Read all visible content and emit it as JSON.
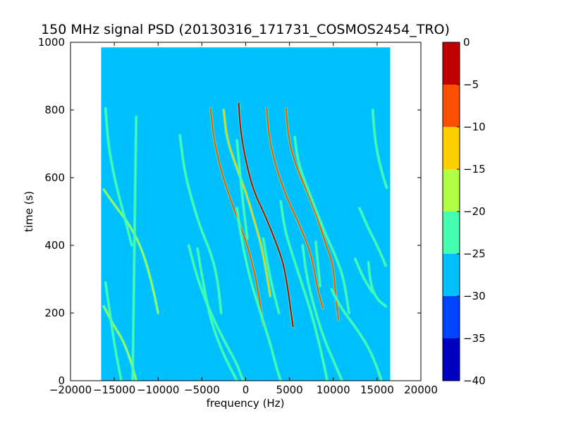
{
  "chart_data": {
    "type": "heatmap",
    "title": "150 MHz signal PSD (20130316_171731_COSMOS2454_TRO)",
    "xlabel": "frequency (Hz)",
    "ylabel": "time (s)",
    "xlim": [
      -20000,
      20000
    ],
    "ylim": [
      0,
      1000
    ],
    "x_ticks": [
      "−20000",
      "−15000",
      "−10000",
      "−5000",
      "0",
      "5000",
      "10000",
      "15000",
      "20000"
    ],
    "x_tick_values": [
      -20000,
      -15000,
      -10000,
      -5000,
      0,
      5000,
      10000,
      15000,
      20000
    ],
    "y_ticks": [
      "0",
      "200",
      "400",
      "600",
      "800",
      "1000"
    ],
    "y_tick_values": [
      0,
      200,
      400,
      600,
      800,
      1000
    ],
    "data_extent": {
      "freq_min": -16500,
      "freq_max": 16500,
      "time_min": 0,
      "time_max": 985
    },
    "background_level": -28,
    "colorbar": {
      "levels": [
        0,
        -5,
        -10,
        -15,
        -20,
        -25,
        -30,
        -35,
        -40
      ],
      "tick_labels": [
        "0",
        "−5",
        "−10",
        "−15",
        "−20",
        "−25",
        "−30",
        "−35",
        "−40"
      ],
      "bands": [
        {
          "from": -40,
          "to": -35,
          "color": "#0000c0"
        },
        {
          "from": -35,
          "to": -30,
          "color": "#0044ff"
        },
        {
          "from": -30,
          "to": -25,
          "color": "#00c0ff"
        },
        {
          "from": -25,
          "to": -20,
          "color": "#44ffb0"
        },
        {
          "from": -20,
          "to": -15,
          "color": "#b0ff44"
        },
        {
          "from": -15,
          "to": -10,
          "color": "#ffd000"
        },
        {
          "from": -10,
          "to": -5,
          "color": "#ff5000"
        },
        {
          "from": -5,
          "to": 0,
          "color": "#c00000"
        }
      ]
    },
    "tracks": [
      {
        "points": [
          [
            -16200,
            565
          ],
          [
            -15000,
            520
          ],
          [
            -13500,
            470
          ],
          [
            -12000,
            400
          ],
          [
            -10800,
            300
          ],
          [
            -10000,
            200
          ]
        ],
        "level": -18
      },
      {
        "points": [
          [
            -16200,
            220
          ],
          [
            -15000,
            160
          ],
          [
            -14000,
            120
          ],
          [
            -13000,
            50
          ],
          [
            -12500,
            0
          ]
        ],
        "level": -18
      },
      {
        "points": [
          [
            -16000,
            805
          ],
          [
            -15700,
            700
          ],
          [
            -15000,
            600
          ],
          [
            -14000,
            500
          ],
          [
            -13000,
            400
          ]
        ],
        "level": -20
      },
      {
        "points": [
          [
            -16000,
            290
          ],
          [
            -15500,
            200
          ],
          [
            -15000,
            110
          ],
          [
            -14500,
            40
          ],
          [
            -14200,
            0
          ]
        ],
        "level": -22
      },
      {
        "points": [
          [
            -12500,
            780
          ],
          [
            -12600,
            600
          ],
          [
            -12700,
            400
          ],
          [
            -12800,
            200
          ],
          [
            -12900,
            0
          ]
        ],
        "level": -24
      },
      {
        "points": [
          [
            -7500,
            725
          ],
          [
            -7000,
            620
          ],
          [
            -6000,
            520
          ],
          [
            -5000,
            440
          ],
          [
            -4000,
            380
          ],
          [
            -3200,
            300
          ],
          [
            -2800,
            200
          ]
        ],
        "level": -20
      },
      {
        "points": [
          [
            -5500,
            390
          ],
          [
            -4800,
            280
          ],
          [
            -4000,
            180
          ],
          [
            -2900,
            100
          ],
          [
            -2000,
            50
          ],
          [
            -1000,
            0
          ]
        ],
        "level": -22
      },
      {
        "points": [
          [
            -4000,
            805
          ],
          [
            -3700,
            720
          ],
          [
            -2800,
            620
          ],
          [
            -1800,
            540
          ],
          [
            -800,
            470
          ],
          [
            200,
            400
          ],
          [
            1200,
            300
          ],
          [
            1800,
            200
          ],
          [
            2000,
            165
          ]
        ],
        "level": -8
      },
      {
        "points": [
          [
            -2500,
            800
          ],
          [
            -2200,
            720
          ],
          [
            -1200,
            640
          ],
          [
            0,
            560
          ],
          [
            900,
            480
          ],
          [
            1800,
            400
          ],
          [
            2500,
            300
          ],
          [
            2800,
            250
          ]
        ],
        "level": -10
      },
      {
        "points": [
          [
            -1000,
            510
          ],
          [
            -500,
            420
          ],
          [
            500,
            300
          ],
          [
            1700,
            200
          ],
          [
            2700,
            120
          ],
          [
            3500,
            40
          ],
          [
            4000,
            0
          ]
        ],
        "level": -22
      },
      {
        "points": [
          [
            -6500,
            400
          ],
          [
            -5500,
            300
          ],
          [
            -4000,
            200
          ],
          [
            -2500,
            120
          ],
          [
            -1000,
            50
          ],
          [
            -300,
            0
          ]
        ],
        "level": -22
      },
      {
        "points": [
          [
            -1000,
            710
          ],
          [
            -600,
            600
          ],
          [
            -200,
            500
          ],
          [
            200,
            420
          ]
        ],
        "level": -20
      },
      {
        "points": [
          [
            -800,
            820
          ],
          [
            -600,
            740
          ],
          [
            0,
            650
          ],
          [
            900,
            560
          ],
          [
            2200,
            490
          ],
          [
            3600,
            400
          ],
          [
            4500,
            330
          ],
          [
            5400,
            160
          ]
        ],
        "level": 0
      },
      {
        "points": [
          [
            2400,
            805
          ],
          [
            2700,
            710
          ],
          [
            3600,
            620
          ],
          [
            4700,
            540
          ],
          [
            5800,
            480
          ],
          [
            6800,
            420
          ],
          [
            7600,
            360
          ],
          [
            8200,
            270
          ],
          [
            8800,
            215
          ]
        ],
        "level": -8
      },
      {
        "points": [
          [
            4600,
            805
          ],
          [
            4900,
            710
          ],
          [
            5800,
            630
          ],
          [
            7000,
            560
          ],
          [
            8200,
            480
          ],
          [
            9200,
            400
          ],
          [
            10000,
            340
          ],
          [
            10300,
            240
          ],
          [
            10600,
            180
          ]
        ],
        "level": -6
      },
      {
        "points": [
          [
            5600,
            720
          ],
          [
            6000,
            640
          ],
          [
            7500,
            540
          ],
          [
            9000,
            440
          ],
          [
            10400,
            360
          ],
          [
            11200,
            300
          ],
          [
            11800,
            200
          ]
        ],
        "level": -20
      },
      {
        "points": [
          [
            4000,
            530
          ],
          [
            4500,
            440
          ],
          [
            5500,
            360
          ],
          [
            6500,
            280
          ],
          [
            7500,
            200
          ],
          [
            8300,
            120
          ],
          [
            9000,
            40
          ],
          [
            9300,
            0
          ]
        ],
        "level": -20
      },
      {
        "points": [
          [
            6500,
            400
          ],
          [
            7000,
            300
          ],
          [
            8000,
            200
          ],
          [
            9000,
            120
          ],
          [
            10000,
            60
          ],
          [
            11000,
            0
          ]
        ],
        "level": -20
      },
      {
        "points": [
          [
            8000,
            410
          ],
          [
            8300,
            330
          ],
          [
            8500,
            280
          ]
        ],
        "level": -20
      },
      {
        "points": [
          [
            2000,
            420
          ],
          [
            2800,
            300
          ],
          [
            3800,
            200
          ]
        ],
        "level": -22
      },
      {
        "points": [
          [
            14500,
            800
          ],
          [
            14800,
            700
          ],
          [
            15500,
            620
          ],
          [
            16100,
            570
          ]
        ],
        "level": -20
      },
      {
        "points": [
          [
            13000,
            510
          ],
          [
            14000,
            450
          ],
          [
            15000,
            400
          ],
          [
            16000,
            340
          ]
        ],
        "level": -22
      },
      {
        "points": [
          [
            14000,
            350
          ],
          [
            14300,
            280
          ],
          [
            15000,
            240
          ],
          [
            16000,
            220
          ]
        ],
        "level": -20
      },
      {
        "points": [
          [
            9800,
            270
          ],
          [
            11000,
            210
          ],
          [
            12500,
            160
          ],
          [
            14000,
            100
          ],
          [
            15000,
            40
          ],
          [
            15500,
            0
          ]
        ],
        "level": -20
      },
      {
        "points": [
          [
            12500,
            360
          ],
          [
            13500,
            300
          ],
          [
            14500,
            260
          ]
        ],
        "level": -22
      }
    ]
  }
}
